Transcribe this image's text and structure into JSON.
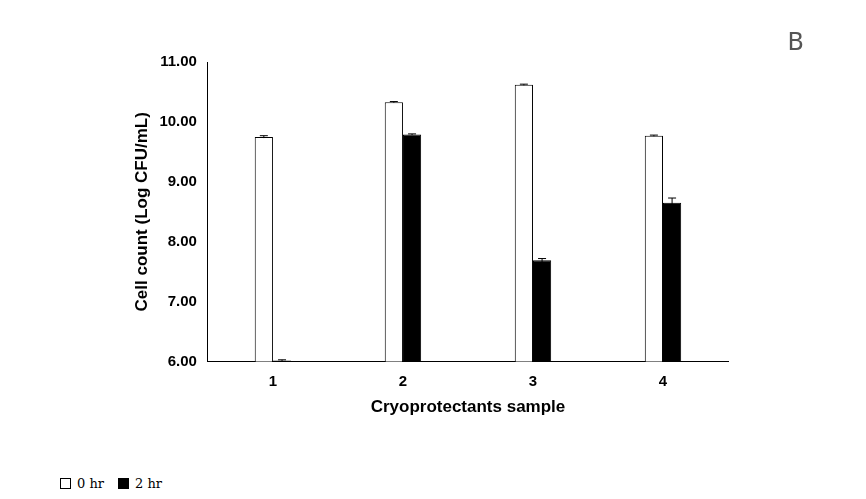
{
  "chart_data": {
    "type": "bar",
    "annotation": "B",
    "categories": [
      "1",
      "2",
      "3",
      "4"
    ],
    "x_label": "Cryoprotectants sample",
    "y_label": "Cell count (Log CFU/mL)",
    "series": [
      {
        "name": "0 hr",
        "color": "#ffffff",
        "values": [
          9.75,
          10.33,
          10.62,
          9.77
        ],
        "errors": [
          0.02,
          0.01,
          0.01,
          0.01
        ]
      },
      {
        "name": "2 hr",
        "color": "#000000",
        "values": [
          6.02,
          9.79,
          7.69,
          8.65
        ],
        "errors": [
          0.01,
          0.01,
          0.03,
          0.08
        ]
      }
    ],
    "ylim": [
      6,
      11
    ],
    "yticks": [
      {
        "value": 6,
        "label": "6.00"
      },
      {
        "value": 7,
        "label": "7.00"
      },
      {
        "value": 8,
        "label": "8.00"
      },
      {
        "value": 9,
        "label": "9.00"
      },
      {
        "value": 10,
        "label": "10.00"
      },
      {
        "value": 11,
        "label": "11.00"
      }
    ],
    "grid": false,
    "legend": "bottom-left"
  }
}
